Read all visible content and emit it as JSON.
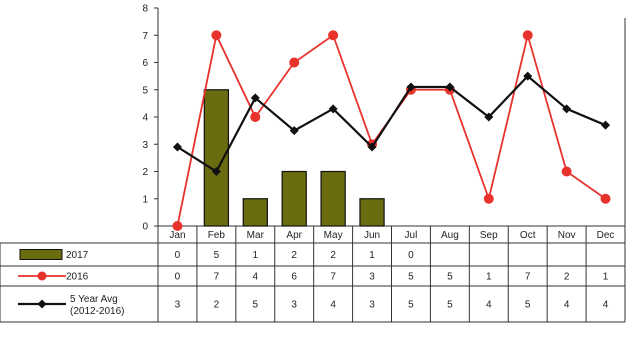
{
  "chart_data": {
    "type": "bar",
    "categories": [
      "Jan",
      "Feb",
      "Mar",
      "Apr",
      "May",
      "Jun",
      "Jul",
      "Aug",
      "Sep",
      "Oct",
      "Nov",
      "Dec"
    ],
    "ylim": [
      0,
      8
    ],
    "yticks": [
      0,
      1,
      2,
      3,
      4,
      5,
      6,
      7,
      8
    ],
    "grid": false,
    "legend": "bottom-left data table",
    "series": [
      {
        "name": "2017",
        "type": "bar",
        "color": "#6b6b10",
        "values": [
          0,
          5,
          1,
          2,
          2,
          1,
          0,
          null,
          null,
          null,
          null,
          null
        ],
        "table_values": [
          "0",
          "5",
          "1",
          "2",
          "2",
          "1",
          "0",
          "",
          "",
          "",
          "",
          ""
        ]
      },
      {
        "name": "2016",
        "type": "line",
        "color": "#e8322c",
        "values": [
          0,
          7,
          4,
          6,
          7,
          3,
          5,
          5,
          1,
          7,
          2,
          1
        ],
        "table_values": [
          "0",
          "7",
          "4",
          "6",
          "7",
          "3",
          "5",
          "5",
          "1",
          "7",
          "2",
          "1"
        ]
      },
      {
        "name": "5 Year Avg",
        "name_line2": "(2012-2016)",
        "type": "line",
        "color": "#111111",
        "values": [
          2.9,
          2.0,
          4.7,
          3.5,
          4.3,
          2.9,
          5.1,
          5.1,
          4.0,
          5.5,
          4.3,
          3.7
        ],
        "table_values": [
          "3",
          "2",
          "5",
          "3",
          "4",
          "3",
          "5",
          "5",
          "4",
          "5",
          "4",
          "4"
        ]
      }
    ]
  }
}
